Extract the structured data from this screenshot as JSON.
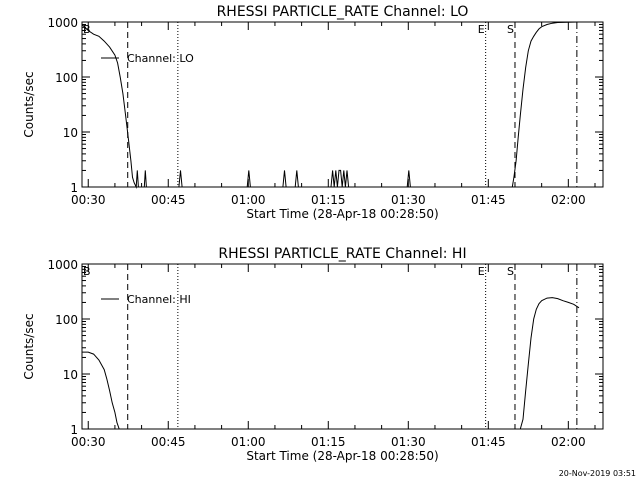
{
  "footer_timestamp": "20-Nov-2019 03:51",
  "chart_data": [
    {
      "type": "line",
      "title": "RHESSI PARTICLE_RATE Channel: LO",
      "ylabel": "Counts/sec",
      "xlabel": "Start Time (28-Apr-18 00:28:50)",
      "x_unit": "minutes after 00:00 UT",
      "xlim": [
        28.83,
        126.5
      ],
      "ylim": [
        1,
        1000
      ],
      "yscale": "log",
      "x_ticks": [
        30,
        45,
        60,
        75,
        90,
        105,
        120
      ],
      "x_tick_labels": [
        "00:30",
        "00:45",
        "01:00",
        "01:15",
        "01:30",
        "01:45",
        "02:00"
      ],
      "y_ticks": [
        1,
        10,
        100,
        1000
      ],
      "y_tick_labels": [
        "1",
        "10",
        "100",
        "1000"
      ],
      "legend": {
        "label": "Channel: LO",
        "position": "top-left"
      },
      "series": [
        {
          "name": "Channel: LO",
          "x": [
            28.83,
            30.0,
            31.0,
            32.0,
            33.0,
            34.0,
            35.0,
            35.5,
            36.0,
            36.5,
            37.0,
            37.5,
            38.0,
            38.3,
            38.6,
            39.0,
            39.2,
            39.4,
            40.5,
            40.7,
            40.9,
            47.0,
            47.3,
            47.6,
            59.8,
            60.1,
            60.4,
            66.5,
            66.8,
            67.1,
            68.8,
            69.1,
            69.4,
            75.5,
            75.8,
            76.1,
            76.4,
            76.7,
            77.0,
            77.3,
            77.6,
            77.9,
            78.2,
            78.5,
            78.8,
            89.8,
            90.1,
            90.4,
            109.5,
            109.8,
            110.2,
            110.6,
            111.0,
            111.5,
            112.0,
            112.5,
            113.0,
            113.5,
            114.0,
            114.5,
            115.0,
            116.0,
            117.0,
            118.0,
            120.0,
            122.0
          ],
          "y": [
            900,
            700,
            600,
            550,
            450,
            350,
            250,
            180,
            100,
            50,
            20,
            8,
            3,
            1.5,
            1.2,
            1.0,
            2,
            1.0,
            1.0,
            2,
            1.0,
            1.0,
            2,
            1.0,
            1.0,
            2,
            1.0,
            1.0,
            2,
            1.0,
            1.0,
            2,
            1.0,
            1.0,
            2,
            1.0,
            2,
            1.0,
            2,
            2,
            1.0,
            2,
            1.0,
            2,
            1.0,
            1.0,
            2,
            1.0,
            1.0,
            1.5,
            3,
            8,
            20,
            60,
            150,
            300,
            450,
            550,
            650,
            750,
            820,
            900,
            950,
            980,
            990,
            1000
          ]
        }
      ],
      "markers": [
        {
          "x": 37.4,
          "style": "dashed",
          "label": ""
        },
        {
          "x": 46.8,
          "style": "dotted",
          "label": ""
        },
        {
          "x": 104.5,
          "style": "dotted",
          "label": "E"
        },
        {
          "x": 110.0,
          "style": "dashed",
          "label": "S"
        },
        {
          "x": 121.6,
          "style": "dash-dot",
          "label": ""
        }
      ],
      "corner_label": "B"
    },
    {
      "type": "line",
      "title": "RHESSI PARTICLE_RATE Channel: HI",
      "ylabel": "Counts/sec",
      "xlabel": "Start Time (28-Apr-18 00:28:50)",
      "x_unit": "minutes after 00:00 UT",
      "xlim": [
        28.83,
        126.5
      ],
      "ylim": [
        1,
        1000
      ],
      "yscale": "log",
      "x_ticks": [
        30,
        45,
        60,
        75,
        90,
        105,
        120
      ],
      "x_tick_labels": [
        "00:30",
        "00:45",
        "01:00",
        "01:15",
        "01:30",
        "01:45",
        "02:00"
      ],
      "y_ticks": [
        1,
        10,
        100,
        1000
      ],
      "y_tick_labels": [
        "1",
        "10",
        "100",
        "1000"
      ],
      "legend": {
        "label": "Channel: HI",
        "position": "top-left"
      },
      "series": [
        {
          "name": "Channel: HI",
          "x": [
            28.83,
            30.0,
            31.0,
            32.0,
            33.0,
            33.5,
            34.0,
            34.5,
            35.0,
            35.4,
            35.8,
            36.0,
            111.0,
            111.5,
            112.0,
            112.5,
            113.0,
            113.5,
            114.0,
            114.5,
            115.0,
            116.0,
            117.0,
            118.0,
            119.0,
            120.0,
            121.0,
            122.0
          ],
          "y": [
            25,
            25,
            23,
            18,
            12,
            8,
            5,
            3,
            2,
            1.3,
            1.0,
            1.0,
            1.0,
            1.5,
            5,
            15,
            45,
            100,
            150,
            190,
            215,
            240,
            245,
            235,
            215,
            200,
            185,
            160
          ]
        }
      ],
      "markers": [
        {
          "x": 37.4,
          "style": "dashed",
          "label": ""
        },
        {
          "x": 46.8,
          "style": "dotted",
          "label": ""
        },
        {
          "x": 104.5,
          "style": "dotted",
          "label": "E"
        },
        {
          "x": 110.0,
          "style": "dashed",
          "label": "S"
        },
        {
          "x": 121.6,
          "style": "dash-dot",
          "label": ""
        }
      ],
      "corner_label": "B"
    }
  ]
}
